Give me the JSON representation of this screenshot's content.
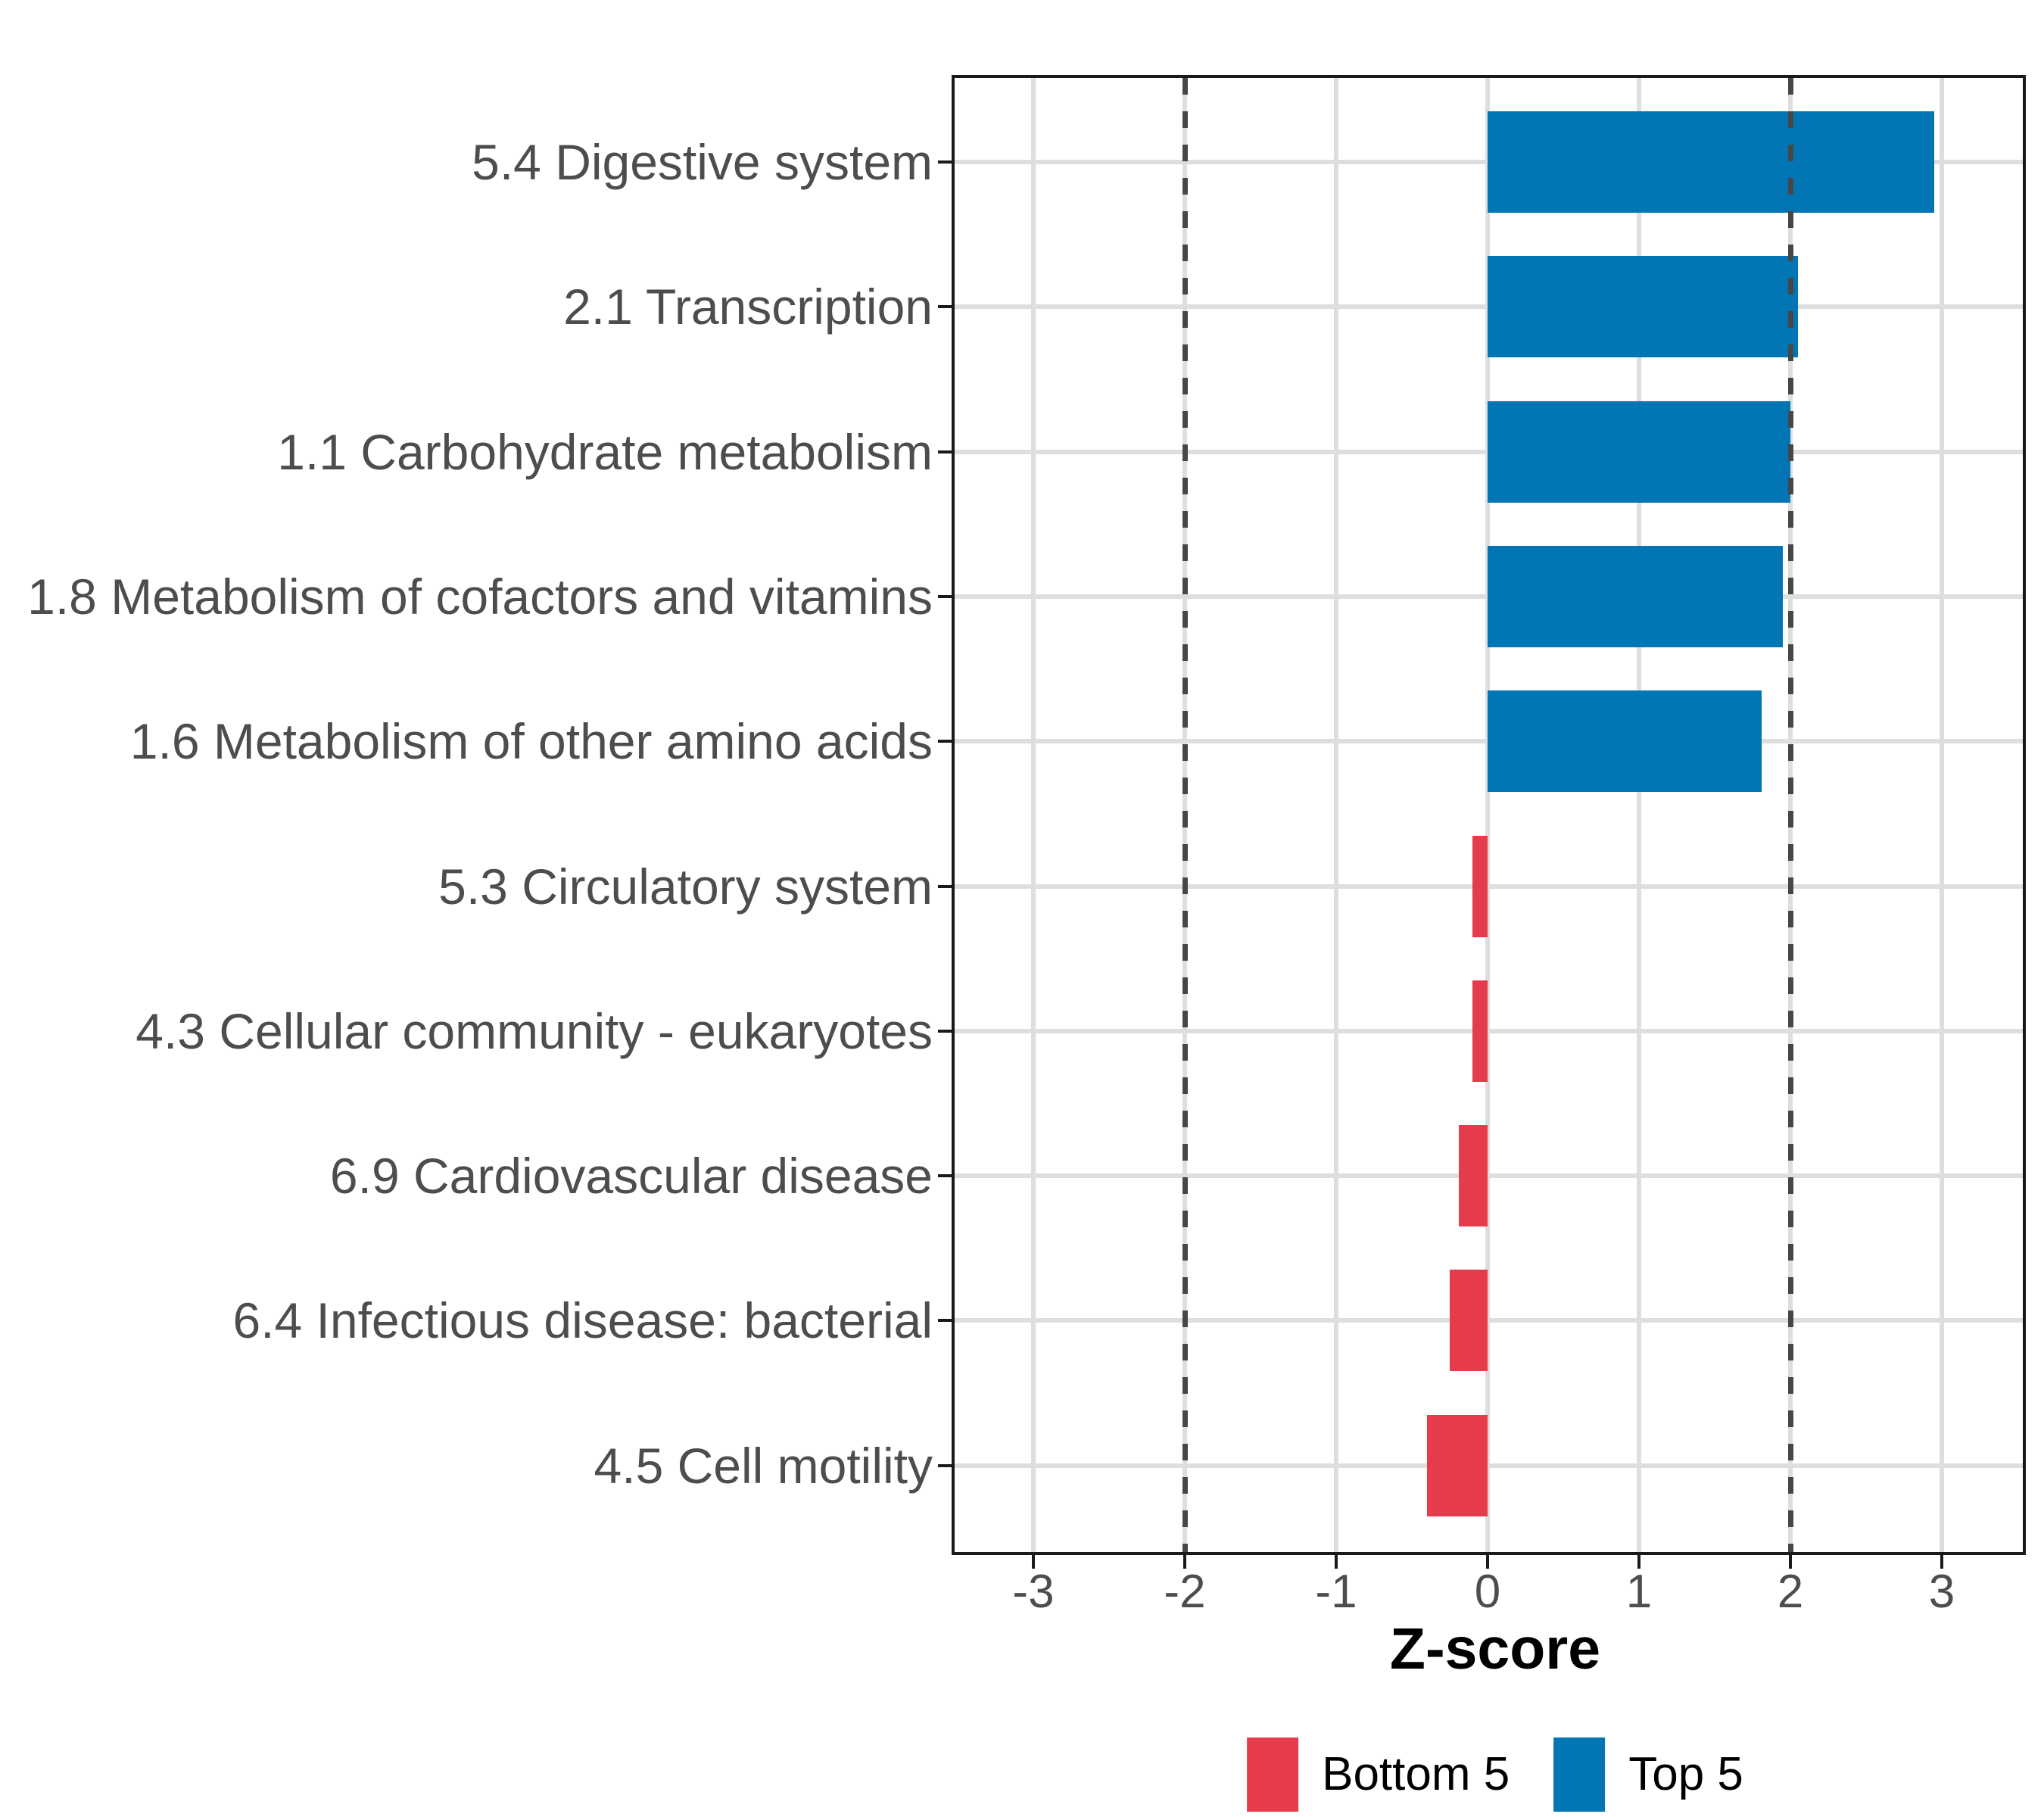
{
  "chart_data": {
    "type": "bar",
    "orientation": "horizontal",
    "title": "",
    "xlabel": "Z-score",
    "ylabel": "",
    "categories": [
      "5.4 Digestive system",
      "2.1 Transcription",
      "1.1 Carbohydrate metabolism",
      "1.8 Metabolism of cofactors and vitamins",
      "1.6 Metabolism of other amino acids",
      "5.3 Circulatory system",
      "4.3 Cellular community - eukaryotes",
      "6.9 Cardiovascular disease",
      "6.4 Infectious disease: bacterial",
      "4.5 Cell motility"
    ],
    "values": [
      2.95,
      2.05,
      2.0,
      1.95,
      1.81,
      -0.1,
      -0.1,
      -0.19,
      -0.25,
      -0.4
    ],
    "groups": [
      "Top 5",
      "Top 5",
      "Top 5",
      "Top 5",
      "Top 5",
      "Bottom 5",
      "Bottom 5",
      "Bottom 5",
      "Bottom 5",
      "Bottom 5"
    ],
    "x_ticks": [
      "-3",
      "-2",
      "-1",
      "0",
      "1",
      "2",
      "3"
    ],
    "x_tick_values": [
      -3,
      -2,
      -1,
      0,
      1,
      2,
      3
    ],
    "xlim": [
      -3.54,
      3.555
    ],
    "reference_lines": [
      -2,
      2
    ],
    "reference_line_style": "dashed",
    "grid": true,
    "legend_position": "bottom",
    "legend": {
      "entries": [
        {
          "label": "Bottom 5",
          "color": "#e53b4b"
        },
        {
          "label": "Top 5",
          "color": "#0275b5"
        }
      ]
    },
    "colors": {
      "top5": "#0275b5",
      "bottom5": "#e53b4b",
      "grid": "#dedede",
      "axis_text": "#4d4d4d",
      "panel_border": "#1a1a1a",
      "reference_line": "#474747",
      "background": "#ffffff"
    }
  }
}
